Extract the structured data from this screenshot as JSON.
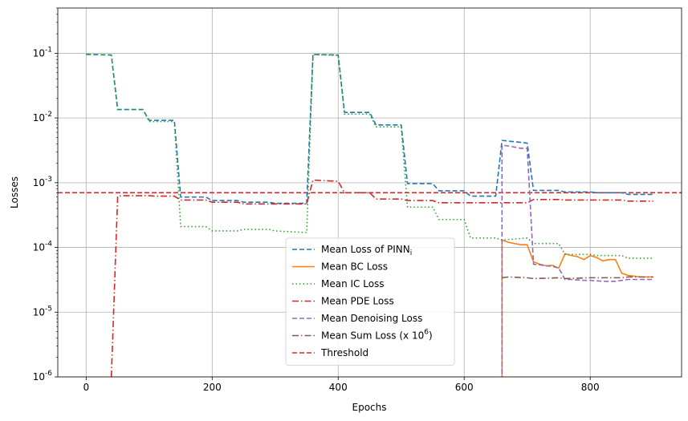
{
  "chart_data": {
    "type": "line",
    "xlabel": "Epochs",
    "ylabel": "Losses",
    "xlim": [
      -45,
      945
    ],
    "ylim": [
      1e-06,
      0.5
    ],
    "yscale": "log",
    "grid": true,
    "legend_position": "bottom-center",
    "x_ticks": [
      0,
      200,
      400,
      600,
      800
    ],
    "y_ticks": [
      {
        "value": 1e-06,
        "label": "10^-6"
      },
      {
        "value": 1e-05,
        "label": "10^-5"
      },
      {
        "value": 0.0001,
        "label": "10^-4"
      },
      {
        "value": 0.001,
        "label": "10^-3"
      },
      {
        "value": 0.01,
        "label": "10^-2"
      },
      {
        "value": 0.1,
        "label": "10^-1"
      }
    ],
    "threshold": {
      "name": "Threshold",
      "value": 0.0007,
      "color": "#d62728",
      "style": "dashed"
    },
    "series": [
      {
        "name": "Mean Loss of PINN_i",
        "color": "#1f77b4",
        "style": "dashed",
        "x": [
          0,
          40,
          50,
          90,
          100,
          140,
          150,
          190,
          200,
          240,
          250,
          290,
          300,
          350,
          360,
          400,
          410,
          450,
          460,
          500,
          510,
          550,
          560,
          600,
          610,
          650,
          660,
          700,
          710,
          750,
          760,
          800,
          810,
          850,
          860,
          900
        ],
        "y": [
          0.096,
          0.094,
          0.0135,
          0.0135,
          0.0092,
          0.0092,
          0.0006,
          0.0006,
          0.00053,
          0.00053,
          0.0005,
          0.0005,
          0.00048,
          0.00048,
          0.096,
          0.094,
          0.0122,
          0.0122,
          0.0078,
          0.0078,
          0.00097,
          0.00097,
          0.00075,
          0.00075,
          0.00062,
          0.00062,
          0.0045,
          0.0041,
          0.00076,
          0.00076,
          0.00072,
          0.00072,
          0.0007,
          0.0007,
          0.00066,
          0.00066
        ]
      },
      {
        "name": "Mean BC Loss",
        "color": "#ff7f0e",
        "style": "solid",
        "x": [
          660,
          670,
          680,
          690,
          700,
          710,
          720,
          730,
          740,
          750,
          760,
          770,
          780,
          790,
          800,
          810,
          820,
          830,
          840,
          850,
          860,
          870,
          880,
          890,
          900
        ],
        "y": [
          0.00013,
          0.00012,
          0.000115,
          0.00011,
          0.00011,
          6e-05,
          5.5e-05,
          5.2e-05,
          5.3e-05,
          4.8e-05,
          8e-05,
          7.5e-05,
          7.2e-05,
          6.5e-05,
          7.5e-05,
          7e-05,
          6.2e-05,
          6.5e-05,
          6.5e-05,
          4e-05,
          3.7e-05,
          3.6e-05,
          3.5e-05,
          3.5e-05,
          3.5e-05
        ]
      },
      {
        "name": "Mean IC Loss",
        "color": "#2ca02c",
        "style": "dotted",
        "x": [
          0,
          40,
          50,
          90,
          100,
          140,
          150,
          190,
          200,
          240,
          250,
          290,
          300,
          350,
          360,
          400,
          410,
          450,
          460,
          500,
          510,
          550,
          560,
          600,
          610,
          650,
          660,
          700,
          710,
          750,
          760,
          800,
          810,
          850,
          860,
          900
        ],
        "y": [
          0.096,
          0.094,
          0.0135,
          0.0135,
          0.0088,
          0.0088,
          0.00021,
          0.00021,
          0.00018,
          0.00018,
          0.00019,
          0.00019,
          0.00018,
          0.00017,
          0.095,
          0.093,
          0.0115,
          0.0115,
          0.0073,
          0.0073,
          0.00042,
          0.00042,
          0.00027,
          0.00027,
          0.00014,
          0.00014,
          0.00013,
          0.00014,
          0.000115,
          0.000115,
          7.8e-05,
          7.8e-05,
          7.5e-05,
          7.5e-05,
          6.8e-05,
          6.8e-05
        ]
      },
      {
        "name": "Mean PDE Loss",
        "color": "#d62728",
        "style": "dashdot",
        "x": [
          40,
          50,
          60,
          100,
          110,
          140,
          150,
          190,
          200,
          240,
          250,
          290,
          300,
          350,
          360,
          400,
          410,
          450,
          460,
          500,
          510,
          550,
          560,
          600,
          610,
          650,
          660,
          700,
          710,
          750,
          760,
          800,
          810,
          850,
          860,
          900
        ],
        "y": [
          1e-06,
          0.00062,
          0.00063,
          0.00063,
          0.00062,
          0.00062,
          0.00054,
          0.00054,
          0.0005,
          0.0005,
          0.00047,
          0.00047,
          0.00047,
          0.00047,
          0.0011,
          0.00105,
          0.0007,
          0.0007,
          0.00056,
          0.00056,
          0.00053,
          0.00053,
          0.00049,
          0.00049,
          0.00049,
          0.00049,
          0.00049,
          0.00049,
          0.00055,
          0.00055,
          0.00054,
          0.00054,
          0.00054,
          0.00054,
          0.00052,
          0.00052
        ]
      },
      {
        "name": "Mean Denoising Loss",
        "color": "#9467bd",
        "style": "dashed",
        "x": [
          660,
          670,
          690,
          700,
          710,
          720,
          730,
          740,
          750,
          760,
          770,
          790,
          800,
          820,
          840,
          860,
          870,
          900
        ],
        "y": [
          0.0038,
          0.0037,
          0.0034,
          0.0034,
          5.5e-05,
          5.4e-05,
          5.2e-05,
          5.1e-05,
          4.8e-05,
          3.2e-05,
          3.2e-05,
          3.1e-05,
          3.1e-05,
          3e-05,
          3e-05,
          3.2e-05,
          3.2e-05,
          3.2e-05
        ]
      },
      {
        "name": "Mean Sum Loss (x 10^6)",
        "color": "#8c564b",
        "style": "dashdot",
        "x": [
          660,
          670,
          700,
          710,
          750,
          760,
          800,
          820,
          850,
          860,
          880,
          900
        ],
        "y": [
          3.4e-05,
          3.5e-05,
          3.4e-05,
          3.3e-05,
          3.4e-05,
          3.3e-05,
          3.4e-05,
          3.4e-05,
          3.4e-05,
          3.5e-05,
          3.5e-05,
          3.5e-05
        ]
      }
    ]
  }
}
